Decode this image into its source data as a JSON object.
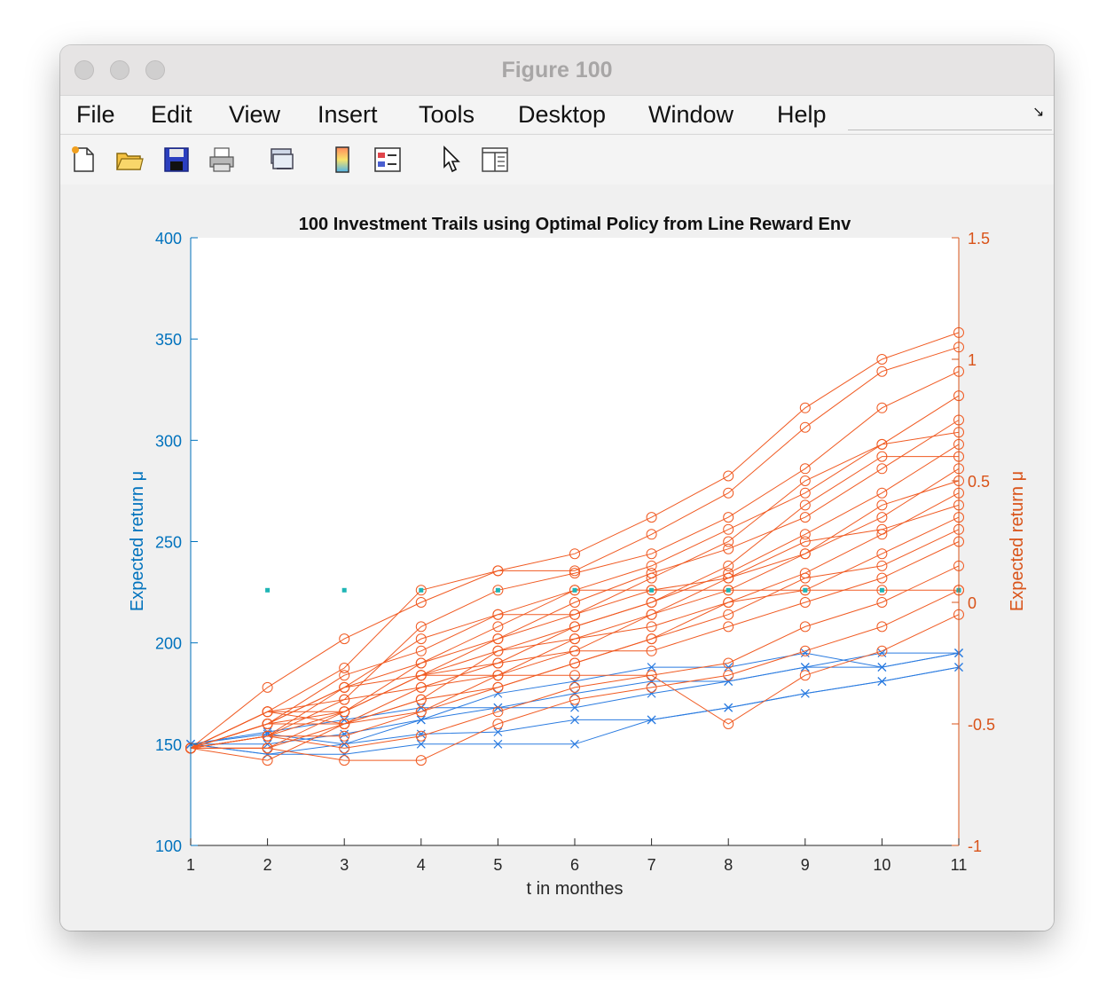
{
  "window": {
    "title": "Figure 100"
  },
  "menu": [
    "File",
    "Edit",
    "View",
    "Insert",
    "Tools",
    "Desktop",
    "Window",
    "Help"
  ],
  "toolbar": [
    "new-figure-icon",
    "open-file-icon",
    "save-icon",
    "print-icon",
    "link-icon",
    "colorbar-icon",
    "legend-icon",
    "pointer-icon",
    "property-inspector-icon"
  ],
  "colors": {
    "left_axis": "#0072BD",
    "right_axis": "#D95319",
    "blue_series": "#2a7be0",
    "orange_series": "#f05a22",
    "marker_cyan": "#1fb5b5"
  },
  "chart_data": {
    "type": "line",
    "title": "100 Investment Trails using Optimal Policy from Line Reward Env",
    "xlabel": "t in monthes",
    "ylabel_left": "Expected return μ",
    "ylabel_right": "Expected return μ",
    "xlim": [
      1,
      11
    ],
    "ylim_left": [
      100,
      400
    ],
    "ylim_right": [
      -1,
      1.5
    ],
    "xticks": [
      "1",
      "2",
      "3",
      "4",
      "5",
      "6",
      "7",
      "8",
      "9",
      "10",
      "11"
    ],
    "yticks_left": [
      "100",
      "150",
      "200",
      "250",
      "300",
      "350",
      "400"
    ],
    "yticks_right": [
      "-1",
      "-0.5",
      "0",
      "0.5",
      "1",
      "1.5"
    ],
    "grid": false,
    "cyan_points": {
      "x": [
        2,
        3,
        4,
        5,
        6,
        7,
        8,
        9,
        10,
        11
      ],
      "y": [
        226,
        226,
        226,
        226,
        226,
        226,
        226,
        226,
        226,
        226
      ]
    },
    "series": [
      {
        "axis": "left",
        "marker": "x",
        "x": [
          1,
          2,
          3,
          4,
          5,
          6,
          7,
          8,
          9,
          10,
          11
        ],
        "y": [
          150,
          145,
          145,
          150,
          150,
          150,
          162,
          168,
          175,
          181,
          188
        ]
      },
      {
        "axis": "left",
        "marker": "x",
        "x": [
          1,
          2,
          3,
          4,
          5,
          6,
          7,
          8,
          9,
          10,
          11
        ],
        "y": [
          150,
          155,
          150,
          155,
          156,
          162,
          162,
          168,
          175,
          181,
          188
        ]
      },
      {
        "axis": "left",
        "marker": "x",
        "x": [
          1,
          2,
          3,
          4,
          5,
          6,
          7,
          8,
          9,
          10,
          11
        ],
        "y": [
          150,
          150,
          155,
          162,
          168,
          168,
          175,
          181,
          188,
          188,
          195
        ]
      },
      {
        "axis": "left",
        "marker": "x",
        "x": [
          1,
          2,
          3,
          4,
          5,
          6,
          7,
          8,
          9,
          10,
          11
        ],
        "y": [
          150,
          156,
          162,
          168,
          168,
          175,
          181,
          181,
          188,
          195,
          195
        ]
      },
      {
        "axis": "left",
        "marker": "x",
        "x": [
          1,
          2,
          3,
          4,
          5,
          6,
          7,
          8,
          9,
          10,
          11
        ],
        "y": [
          150,
          145,
          150,
          162,
          175,
          181,
          188,
          188,
          195,
          188,
          195
        ]
      },
      {
        "axis": "right",
        "marker": "o",
        "x": [
          1,
          2,
          3,
          4,
          5,
          6,
          7,
          8,
          9,
          10,
          11
        ],
        "y": [
          -0.6,
          -0.35,
          -0.15,
          0,
          0.13,
          0.2,
          0.35,
          0.52,
          0.8,
          1.0,
          1.11
        ]
      },
      {
        "axis": "right",
        "marker": "o",
        "x": [
          1,
          2,
          3,
          4,
          5,
          6,
          7,
          8,
          9,
          10,
          11
        ],
        "y": [
          -0.6,
          -0.45,
          -0.27,
          0.05,
          0.13,
          0.13,
          0.28,
          0.45,
          0.72,
          0.95,
          1.05
        ]
      },
      {
        "axis": "right",
        "marker": "o",
        "x": [
          1,
          2,
          3,
          4,
          5,
          6,
          7,
          8,
          9,
          10,
          11
        ],
        "y": [
          -0.6,
          -0.55,
          -0.4,
          -0.1,
          0.05,
          0.12,
          0.2,
          0.35,
          0.55,
          0.8,
          0.95
        ]
      },
      {
        "axis": "right",
        "marker": "o",
        "x": [
          1,
          2,
          3,
          4,
          5,
          6,
          7,
          8,
          9,
          10,
          11
        ],
        "y": [
          -0.6,
          -0.5,
          -0.35,
          -0.15,
          -0.05,
          0.05,
          0.15,
          0.3,
          0.45,
          0.65,
          0.85
        ]
      },
      {
        "axis": "right",
        "marker": "o",
        "x": [
          1,
          2,
          3,
          4,
          5,
          6,
          7,
          8,
          9,
          10,
          11
        ],
        "y": [
          -0.6,
          -0.6,
          -0.45,
          -0.3,
          -0.15,
          0.0,
          0.12,
          0.22,
          0.35,
          0.55,
          0.75
        ]
      },
      {
        "axis": "right",
        "marker": "o",
        "x": [
          1,
          2,
          3,
          4,
          5,
          6,
          7,
          8,
          9,
          10,
          11
        ],
        "y": [
          -0.6,
          -0.5,
          -0.5,
          -0.35,
          -0.25,
          -0.1,
          0.0,
          0.12,
          0.28,
          0.45,
          0.65
        ]
      },
      {
        "axis": "right",
        "marker": "o",
        "x": [
          1,
          2,
          3,
          4,
          5,
          6,
          7,
          8,
          9,
          10,
          11
        ],
        "y": [
          -0.6,
          -0.55,
          -0.55,
          -0.45,
          -0.3,
          -0.2,
          -0.05,
          0.05,
          0.2,
          0.35,
          0.55
        ]
      },
      {
        "axis": "right",
        "marker": "o",
        "x": [
          1,
          2,
          3,
          4,
          5,
          6,
          7,
          8,
          9,
          10,
          11
        ],
        "y": [
          -0.6,
          -0.65,
          -0.5,
          -0.4,
          -0.35,
          -0.25,
          -0.15,
          0.0,
          0.12,
          0.28,
          0.45
        ]
      },
      {
        "axis": "right",
        "marker": "o",
        "x": [
          1,
          2,
          3,
          4,
          5,
          6,
          7,
          8,
          9,
          10,
          11
        ],
        "y": [
          -0.6,
          -0.45,
          -0.45,
          -0.3,
          -0.2,
          -0.15,
          -0.1,
          0.0,
          0.05,
          0.2,
          0.35
        ]
      },
      {
        "axis": "right",
        "marker": "o",
        "x": [
          1,
          2,
          3,
          4,
          5,
          6,
          7,
          8,
          9,
          10,
          11
        ],
        "y": [
          -0.6,
          -0.5,
          -0.35,
          -0.3,
          -0.25,
          -0.2,
          -0.2,
          -0.1,
          0.0,
          0.1,
          0.25
        ]
      },
      {
        "axis": "right",
        "marker": "o",
        "x": [
          1,
          2,
          3,
          4,
          5,
          6,
          7,
          8,
          9,
          10,
          11
        ],
        "y": [
          -0.6,
          -0.55,
          -0.6,
          -0.55,
          -0.45,
          -0.35,
          -0.3,
          -0.25,
          -0.1,
          0.0,
          0.15
        ]
      },
      {
        "axis": "right",
        "marker": "o",
        "x": [
          1,
          2,
          3,
          4,
          5,
          6,
          7,
          8,
          9,
          10,
          11
        ],
        "y": [
          -0.6,
          -0.6,
          -0.65,
          -0.65,
          -0.5,
          -0.4,
          -0.35,
          -0.3,
          -0.2,
          -0.1,
          0.05
        ]
      },
      {
        "axis": "right",
        "marker": "o",
        "x": [
          1,
          2,
          3,
          4,
          5,
          6,
          7,
          8,
          9,
          10,
          11
        ],
        "y": [
          -0.6,
          -0.45,
          -0.4,
          -0.35,
          -0.3,
          -0.3,
          -0.3,
          -0.5,
          -0.3,
          -0.2,
          -0.05
        ]
      },
      {
        "axis": "right",
        "marker": "o",
        "x": [
          1,
          2,
          3,
          4,
          5,
          6,
          7,
          8,
          9,
          10,
          11
        ],
        "y": [
          -0.6,
          -0.55,
          -0.45,
          -0.25,
          -0.1,
          0.05,
          0.05,
          0.05,
          0.05,
          0.05,
          0.05
        ]
      },
      {
        "axis": "right",
        "marker": "o",
        "x": [
          1,
          2,
          3,
          4,
          5,
          6,
          7,
          8,
          9,
          10,
          11
        ],
        "y": [
          -0.6,
          -0.5,
          -0.3,
          -0.2,
          -0.05,
          -0.05,
          0.1,
          0.25,
          0.5,
          0.65,
          0.7
        ]
      },
      {
        "axis": "right",
        "marker": "o",
        "x": [
          1,
          2,
          3,
          4,
          5,
          6,
          7,
          8,
          9,
          10,
          11
        ],
        "y": [
          -0.6,
          -0.6,
          -0.5,
          -0.4,
          -0.2,
          -0.1,
          0.0,
          0.15,
          0.4,
          0.6,
          0.6
        ]
      },
      {
        "axis": "right",
        "marker": "o",
        "x": [
          1,
          2,
          3,
          4,
          5,
          6,
          7,
          8,
          9,
          10,
          11
        ],
        "y": [
          -0.6,
          -0.5,
          -0.45,
          -0.3,
          -0.3,
          -0.15,
          -0.05,
          0.1,
          0.2,
          0.4,
          0.5
        ]
      },
      {
        "axis": "right",
        "marker": "o",
        "x": [
          1,
          2,
          3,
          4,
          5,
          6,
          7,
          8,
          9,
          10,
          11
        ],
        "y": [
          -0.6,
          -0.55,
          -0.35,
          -0.25,
          -0.15,
          -0.05,
          0.05,
          0.1,
          0.25,
          0.3,
          0.4
        ]
      },
      {
        "axis": "right",
        "marker": "o",
        "x": [
          1,
          2,
          3,
          4,
          5,
          6,
          7,
          8,
          9,
          10,
          11
        ],
        "y": [
          -0.6,
          -0.45,
          -0.5,
          -0.45,
          -0.35,
          -0.25,
          -0.15,
          -0.05,
          0.1,
          0.15,
          0.3
        ]
      }
    ]
  }
}
